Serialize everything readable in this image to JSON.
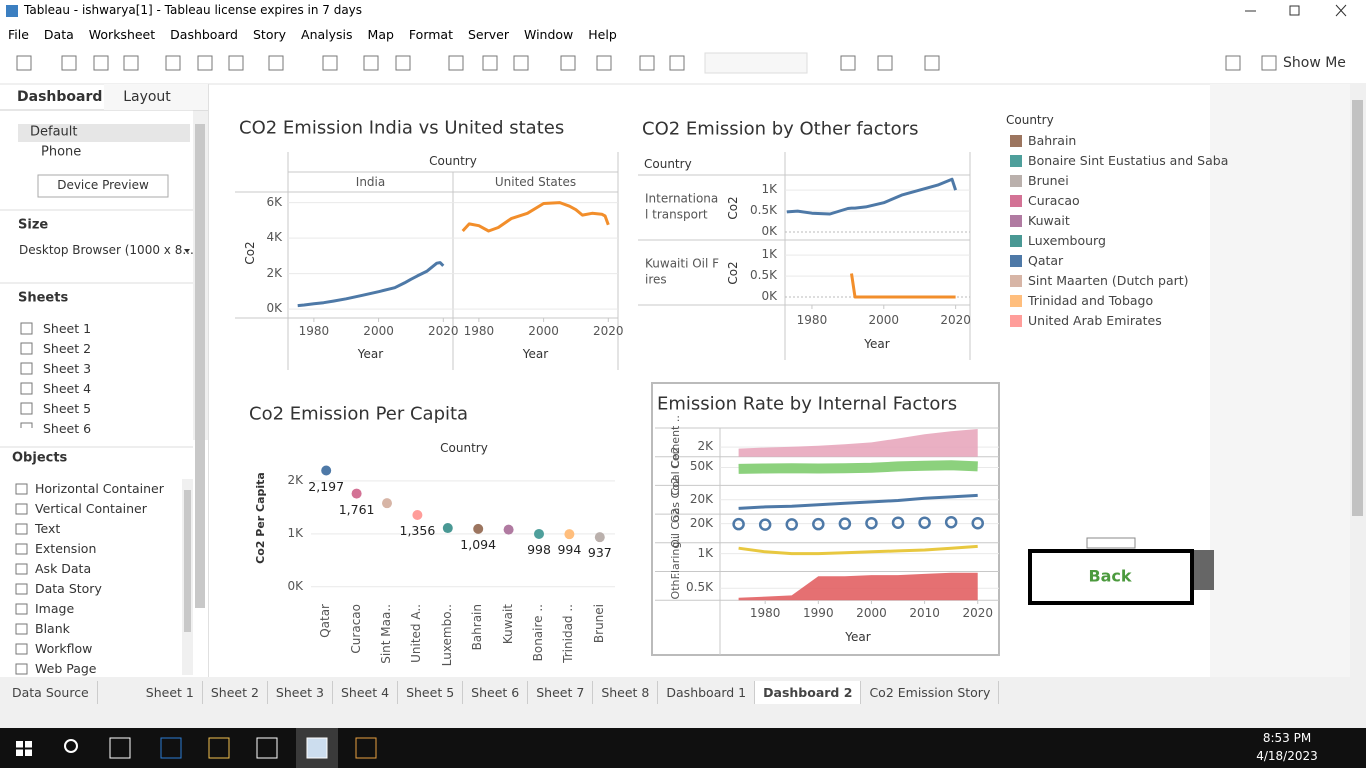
{
  "window": {
    "title": "Tableau - ishwarya[1] - Tableau license expires in 7 days"
  },
  "menu": [
    "File",
    "Data",
    "Worksheet",
    "Dashboard",
    "Story",
    "Analysis",
    "Map",
    "Format",
    "Server",
    "Window",
    "Help"
  ],
  "toolbar": {
    "show_me": "Show Me"
  },
  "side_panel": {
    "tabs": [
      "Dashboard",
      "Layout"
    ],
    "devices": [
      "Default",
      "Phone"
    ],
    "device_preview": "Device Preview",
    "size_heading": "Size",
    "size_value": "Desktop Browser (1000 x 8...",
    "sheets_heading": "Sheets",
    "sheets": [
      "Sheet 1",
      "Sheet 2",
      "Sheet 3",
      "Sheet 4",
      "Sheet 5",
      "Sheet 6"
    ],
    "objects_heading": "Objects",
    "objects": [
      "Horizontal Container",
      "Vertical Container",
      "Text",
      "Extension",
      "Ask Data",
      "Data Story",
      "Image",
      "Blank",
      "Workflow",
      "Web Page"
    ]
  },
  "legend": {
    "title": "Country",
    "items": [
      {
        "name": "Bahrain",
        "color": "#9c755f"
      },
      {
        "name": "Bonaire Sint Eustatius and Saba",
        "color": "#4e9f9b"
      },
      {
        "name": "Brunei",
        "color": "#bab0ac"
      },
      {
        "name": "Curacao",
        "color": "#d37295"
      },
      {
        "name": "Kuwait",
        "color": "#b07aa1"
      },
      {
        "name": "Luxembourg",
        "color": "#499894"
      },
      {
        "name": "Qatar",
        "color": "#4e79a7"
      },
      {
        "name": "Sint Maarten (Dutch part)",
        "color": "#d7b5a6"
      },
      {
        "name": "Trinidad and Tobago",
        "color": "#ffbe7d"
      },
      {
        "name": "United Arab Emirates",
        "color": "#ff9d9a"
      }
    ]
  },
  "back_button": "Back",
  "tabs": [
    "Data Source",
    "Sheet 1",
    "Sheet 2",
    "Sheet 3",
    "Sheet 4",
    "Sheet 5",
    "Sheet 6",
    "Sheet 7",
    "Sheet 8",
    "Dashboard 1",
    "Dashboard 2",
    "Co2 Emission Story"
  ],
  "active_tab": "Dashboard 2",
  "taskbar": {
    "time": "8:53 PM",
    "date": "4/18/2023"
  },
  "chart_data": [
    {
      "type": "line",
      "title": "CO2 Emission India vs United states",
      "column_header": "Country",
      "x_label": "Year",
      "y_label": "Co2",
      "x": [
        1975,
        1977,
        1980,
        1983,
        1986,
        1990,
        1995,
        2000,
        2005,
        2008,
        2010,
        2012,
        2015,
        2018,
        2019,
        2020
      ],
      "series": [
        {
          "name": "India",
          "color": "#4e79a7",
          "values": [
            200,
            230,
            300,
            360,
            450,
            580,
            780,
            980,
            1210,
            1480,
            1680,
            1870,
            2140,
            2590,
            2620,
            2440
          ]
        },
        {
          "name": "United States",
          "color": "#f28e2b",
          "values": [
            4400,
            4800,
            4700,
            4400,
            4600,
            5100,
            5400,
            5950,
            6000,
            5800,
            5600,
            5300,
            5400,
            5350,
            5250,
            4750
          ]
        }
      ],
      "xlim": [
        1972,
        2023
      ],
      "xticks": [
        1980,
        2000,
        2020
      ],
      "ylim": [
        -500,
        6600
      ],
      "yticks": [
        {
          "value": 0,
          "label": "0K"
        },
        {
          "value": 2000,
          "label": "2K"
        },
        {
          "value": 4000,
          "label": "4K"
        },
        {
          "value": 6000,
          "label": "6K"
        }
      ]
    },
    {
      "type": "line",
      "title": "CO2 Emission by Other factors",
      "row_header": "Country",
      "x_label": "Year",
      "y_label": "Co2",
      "x": [
        1973,
        1976,
        1980,
        1985,
        1990,
        1991,
        1992,
        1995,
        2000,
        2005,
        2010,
        2015,
        2019,
        2020
      ],
      "series": [
        {
          "name": "International transport",
          "color": "#4e79a7",
          "values": [
            480,
            500,
            450,
            430,
            560,
            570,
            570,
            600,
            700,
            880,
            1000,
            1120,
            1260,
            1000
          ]
        },
        {
          "name": "Kuwaiti Oil Fires",
          "color": "#f28e2b",
          "values": [
            null,
            null,
            null,
            null,
            null,
            560,
            0,
            0,
            0,
            0,
            0,
            0,
            0,
            0
          ]
        }
      ],
      "xlim": [
        1972.5,
        2024
      ],
      "xticks": [
        1980,
        2000,
        2020
      ],
      "ylim": [
        -190,
        1360
      ],
      "yticks": [
        {
          "value": 0,
          "label": "0K"
        },
        {
          "value": 500,
          "label": "0.5K"
        },
        {
          "value": 1000,
          "label": "1K"
        }
      ]
    },
    {
      "type": "dot",
      "title": "Co2 Emission Per Capita",
      "column_header": "Country",
      "y_label": "Co2 Per Capita",
      "categories": [
        "Qatar",
        "Curacao",
        "Sint Maa..",
        "United A..",
        "Luxembo..",
        "Bahrain",
        "Kuwait",
        "Bonaire ..",
        "Trinidad ..",
        "Brunei"
      ],
      "values": [
        2197,
        1761,
        1580,
        1356,
        1110,
        1094,
        1080,
        998,
        994,
        937
      ],
      "value_labels": [
        "2,197",
        "1,761",
        null,
        "1,356",
        null,
        "1,094",
        null,
        "998",
        "994",
        "937"
      ],
      "colors": [
        "#4e79a7",
        "#d37295",
        "#d7b5a6",
        "#ff9d9a",
        "#499894",
        "#9c755f",
        "#b07aa1",
        "#4e9f9b",
        "#ffbe7d",
        "#bab0ac"
      ],
      "ylim": [
        -250,
        2490
      ],
      "yticks": [
        {
          "value": 0,
          "label": "0K"
        },
        {
          "value": 1000,
          "label": "1K"
        },
        {
          "value": 2000,
          "label": "2K"
        }
      ]
    },
    {
      "type": "area",
      "title": "Emission Rate by Internal Factors",
      "x_label": "Year",
      "x": [
        1975,
        1980,
        1985,
        1990,
        1995,
        2000,
        2005,
        2010,
        2015,
        2020
      ],
      "xlim": [
        1971.5,
        2024
      ],
      "xticks": [
        1980,
        1990,
        2000,
        2010,
        2020
      ],
      "series": [
        {
          "name": "Cement ..",
          "color": "#e6a2b8",
          "mark": "area",
          "ylim": [
            0,
            6000
          ],
          "yticks": [
            {
              "value": 2000,
              "label": "2K"
            }
          ],
          "values": [
            1700,
            1900,
            2100,
            2300,
            2600,
            3000,
            3800,
            4700,
            5300,
            5800
          ]
        },
        {
          "name": "Coal Co2",
          "color": "#8cd17d",
          "mark": "band",
          "ylim": [
            0,
            80000
          ],
          "yticks": [
            {
              "value": 50000,
              "label": "50K"
            }
          ],
          "values": [
            46000,
            47000,
            48000,
            47000,
            48000,
            49000,
            53000,
            55000,
            56000,
            53000
          ]
        },
        {
          "name": "Gas Co2",
          "color": "#4e79a7",
          "mark": "line",
          "ylim": [
            0,
            40000
          ],
          "yticks": [
            {
              "value": 20000,
              "label": "20K"
            }
          ],
          "values": [
            8000,
            10000,
            11000,
            13000,
            15000,
            17000,
            19000,
            22000,
            24000,
            26000
          ]
        },
        {
          "name": "Oil Co2",
          "color": "#4e79a7",
          "mark": "circle",
          "ylim": [
            0,
            30000
          ],
          "yticks": [
            {
              "value": 20000,
              "label": "20K"
            }
          ],
          "values": [
            19500,
            19000,
            19200,
            19500,
            20000,
            20500,
            21000,
            21000,
            21500,
            20500
          ]
        },
        {
          "name": "Flaring..",
          "color": "#e8c840",
          "mark": "line",
          "ylim": [
            0,
            1600
          ],
          "yticks": [
            {
              "value": 1000,
              "label": "1K"
            }
          ],
          "values": [
            1300,
            1100,
            1000,
            1000,
            1050,
            1100,
            1150,
            1200,
            1300,
            1400
          ]
        },
        {
          "name": "Oth..",
          "color": "#e15759",
          "mark": "area",
          "ylim": [
            0,
            1200
          ],
          "yticks": [
            {
              "value": 500,
              "label": "0.5K"
            }
          ],
          "values": [
            100,
            150,
            200,
            1000,
            1000,
            1050,
            1050,
            1100,
            1150,
            1150
          ]
        }
      ]
    }
  ]
}
